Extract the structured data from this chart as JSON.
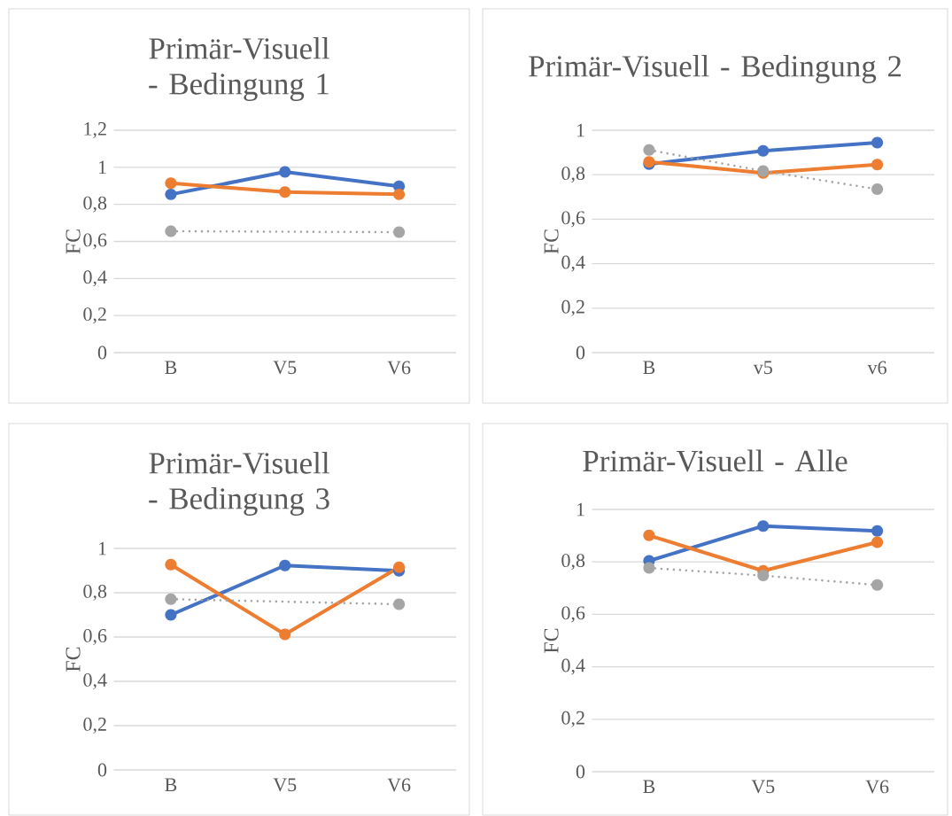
{
  "chart_data": [
    {
      "type": "line",
      "title": "Primär-Visuell - Bedingung 1",
      "ylabel": "FC",
      "categories": [
        "B",
        "V5",
        "V6"
      ],
      "ylim": [
        0,
        1.2
      ],
      "yticks": [
        0,
        {
          "value": 0.2,
          "label": "0,2"
        },
        {
          "value": 0.4,
          "label": "0,4"
        },
        {
          "value": 0.6,
          "label": "0,6"
        },
        {
          "value": 0.8,
          "label": "0,8"
        },
        1,
        {
          "value": 1.2,
          "label": "1,2"
        }
      ],
      "grid": "y",
      "marker": "circle",
      "series": [
        {
          "color": "#4472c4",
          "values": [
            0.854,
            0.975,
            0.898
          ]
        },
        {
          "color": "#ed7d31",
          "values": [
            0.914,
            0.866,
            0.854
          ]
        },
        {
          "color": "#a5a5a5",
          "line_style": "dotted",
          "values": [
            0.655,
            null,
            0.65
          ]
        }
      ]
    },
    {
      "type": "line",
      "title": "Primär-Visuell - Bedingung 2",
      "ylabel": "FC",
      "categories": [
        "B",
        "v5",
        "v6"
      ],
      "ylim": [
        0,
        1
      ],
      "yticks": [
        0,
        {
          "value": 0.2,
          "label": "0,2"
        },
        {
          "value": 0.4,
          "label": "0,4"
        },
        {
          "value": 0.6,
          "label": "0,6"
        },
        {
          "value": 0.8,
          "label": "0,8"
        },
        1
      ],
      "grid": "y",
      "marker": "circle",
      "series": [
        {
          "color": "#4472c4",
          "values": [
            0.848,
            0.907,
            0.944
          ]
        },
        {
          "color": "#ed7d31",
          "values": [
            0.858,
            0.808,
            0.846
          ]
        },
        {
          "color": "#a5a5a5",
          "line_style": "dotted",
          "values": [
            0.911,
            0.817,
            0.735
          ]
        }
      ]
    },
    {
      "type": "line",
      "title": "Primär-Visuell - Bedingung 3",
      "ylabel": "FC",
      "categories": [
        "B",
        "V5",
        "V6"
      ],
      "ylim": [
        0,
        1
      ],
      "yticks": [
        0,
        {
          "value": 0.2,
          "label": "0,2"
        },
        {
          "value": 0.4,
          "label": "0,4"
        },
        {
          "value": 0.6,
          "label": "0,6"
        },
        {
          "value": 0.8,
          "label": "0,8"
        },
        1
      ],
      "grid": "y",
      "marker": "circle",
      "series": [
        {
          "color": "#4472c4",
          "values": [
            0.7,
            0.923,
            0.899
          ]
        },
        {
          "color": "#ed7d31",
          "values": [
            0.927,
            0.612,
            0.915
          ]
        },
        {
          "color": "#a5a5a5",
          "line_style": "dotted",
          "values": [
            0.771,
            null,
            0.748
          ]
        }
      ]
    },
    {
      "type": "line",
      "title": "Primär-Visuell - Alle",
      "ylabel": "FC",
      "categories": [
        "B",
        "V5",
        "V6"
      ],
      "ylim": [
        0,
        1
      ],
      "yticks": [
        0,
        {
          "value": 0.2,
          "label": "0,2"
        },
        {
          "value": 0.4,
          "label": "0,4"
        },
        {
          "value": 0.6,
          "label": "0,6"
        },
        {
          "value": 0.8,
          "label": "0,8"
        },
        1
      ],
      "grid": "y",
      "marker": "circle",
      "series": [
        {
          "color": "#4472c4",
          "values": [
            0.804,
            0.937,
            0.918
          ]
        },
        {
          "color": "#ed7d31",
          "values": [
            0.901,
            0.766,
            0.875
          ]
        },
        {
          "color": "#a5a5a5",
          "line_style": "dotted",
          "values": [
            0.777,
            0.748,
            0.712
          ]
        }
      ]
    }
  ]
}
